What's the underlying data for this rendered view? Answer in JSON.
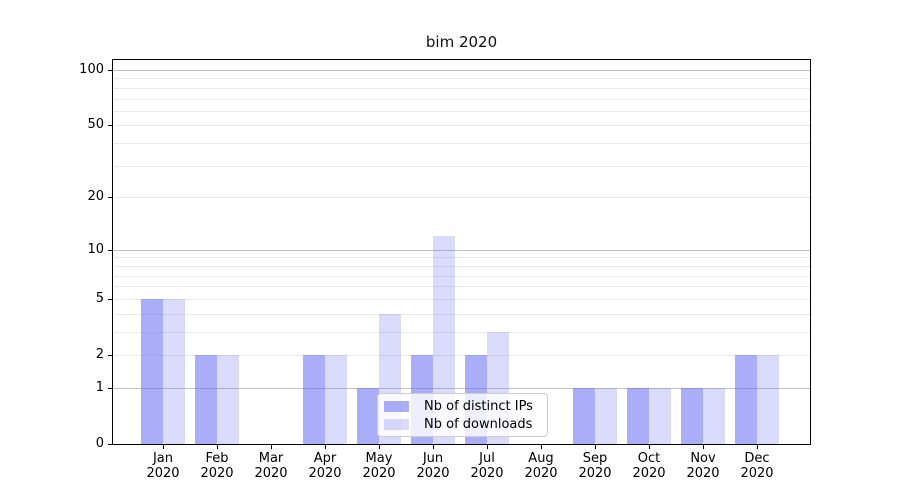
{
  "title": "bim 2020",
  "legend": {
    "items": [
      {
        "label": "Nb of distinct IPs"
      },
      {
        "label": "Nb of downloads"
      }
    ]
  },
  "chart_data": {
    "type": "bar",
    "title": "bim 2020",
    "categories": [
      "Jan",
      "Feb",
      "Mar",
      "Apr",
      "May",
      "Jun",
      "Jul",
      "Aug",
      "Sep",
      "Oct",
      "Nov",
      "Dec"
    ],
    "category_year": "2020",
    "series": [
      {
        "name": "Nb of distinct IPs",
        "color": "rgba(100,105,240,0.55)",
        "values": [
          5,
          2,
          0,
          2,
          1,
          2,
          2,
          0,
          1,
          1,
          1,
          2
        ]
      },
      {
        "name": "Nb of downloads",
        "color": "rgba(100,105,240,0.24)",
        "values": [
          5,
          2,
          0,
          2,
          4,
          12,
          3,
          0,
          1,
          1,
          1,
          2
        ]
      }
    ],
    "xlabel": "",
    "ylabel": "",
    "yscale": "log1p",
    "yticks": [
      0,
      1,
      2,
      5,
      10,
      20,
      50,
      100
    ],
    "ytick_labels": [
      "0",
      "1",
      "2",
      "5",
      "10",
      "20",
      "50",
      "100"
    ],
    "major_gridlines": [
      1,
      10,
      100
    ],
    "minor_gridlines": [
      2,
      3,
      4,
      5,
      6,
      7,
      8,
      9,
      20,
      30,
      40,
      50,
      60,
      70,
      80,
      90
    ],
    "ylim": [
      0,
      113
    ],
    "grid": true,
    "legend_position": "inside lower-center",
    "colors": {
      "bar_dark": "rgba(100,105,240,0.55)",
      "bar_light": "rgba(100,105,240,0.24)",
      "grid_major": "#c2c2c2",
      "grid_minor": "#e9e9e9",
      "spine": "#000000"
    }
  }
}
